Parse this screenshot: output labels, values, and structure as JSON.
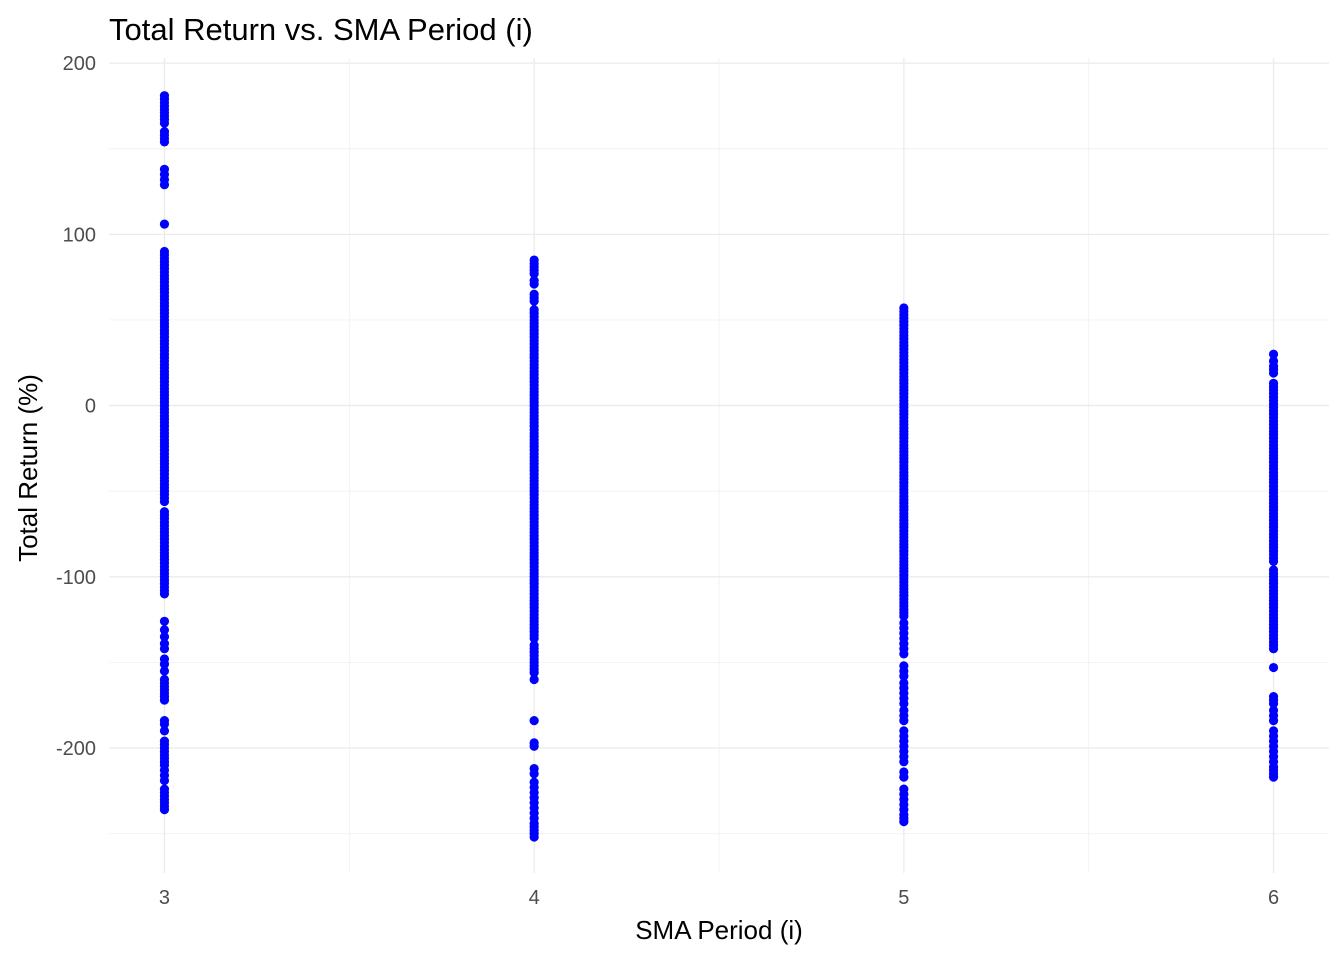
{
  "chart_data": {
    "type": "scatter",
    "title": "Total Return vs. SMA Period (i)",
    "xlabel": "SMA Period (i)",
    "ylabel": "Total Return (%)",
    "x_ticks": [
      3,
      4,
      5,
      6
    ],
    "x_tick_labels": [
      "3",
      "4",
      "5",
      "6"
    ],
    "y_ticks": [
      -200,
      -100,
      0,
      100,
      200
    ],
    "y_tick_labels": [
      "-200",
      "-100",
      "0",
      "100",
      "200"
    ],
    "xlim": [
      2.85,
      6.15
    ],
    "ylim": [
      -273,
      203
    ],
    "grid": true,
    "legend": "none",
    "marker_color": "#0000ff",
    "series": [
      {
        "x": 3,
        "y": [
          181,
          179,
          177,
          175,
          173,
          171,
          169,
          167,
          165,
          160,
          158,
          156,
          154,
          138,
          135,
          132,
          129,
          106,
          90,
          88,
          86,
          84,
          82,
          80,
          78,
          76,
          74,
          72,
          70,
          68,
          66,
          64,
          62,
          60,
          58,
          56,
          54,
          52,
          50,
          48,
          46,
          44,
          42,
          40,
          38,
          36,
          34,
          32,
          30,
          28,
          26,
          24,
          22,
          20,
          18,
          16,
          14,
          12,
          10,
          8,
          6,
          4,
          2,
          0,
          -2,
          -4,
          -6,
          -8,
          -10,
          -12,
          -14,
          -16,
          -18,
          -20,
          -22,
          -24,
          -26,
          -28,
          -30,
          -32,
          -34,
          -36,
          -38,
          -40,
          -42,
          -44,
          -46,
          -48,
          -50,
          -52,
          -54,
          -56,
          -62,
          -64,
          -66,
          -68,
          -70,
          -72,
          -74,
          -76,
          -78,
          -80,
          -82,
          -84,
          -86,
          -88,
          -90,
          -92,
          -94,
          -96,
          -98,
          -100,
          -102,
          -104,
          -106,
          -108,
          -110,
          -126,
          -131,
          -135,
          -139,
          -142,
          -148,
          -151,
          -155,
          -160,
          -162,
          -164,
          -166,
          -168,
          -170,
          -172,
          -184,
          -186,
          -190,
          -196,
          -198,
          -200,
          -202,
          -204,
          -206,
          -208,
          -210,
          -213,
          -216,
          -219,
          -224,
          -226,
          -228,
          -230,
          -232,
          -234,
          -236
        ]
      },
      {
        "x": 4,
        "y": [
          85,
          83,
          81,
          79,
          77,
          73,
          71,
          65,
          63,
          61,
          56,
          54,
          52,
          50,
          48,
          46,
          44,
          42,
          40,
          38,
          36,
          34,
          32,
          30,
          28,
          26,
          24,
          22,
          20,
          18,
          16,
          14,
          12,
          10,
          8,
          6,
          4,
          2,
          0,
          -2,
          -4,
          -6,
          -8,
          -10,
          -12,
          -14,
          -16,
          -18,
          -20,
          -22,
          -24,
          -26,
          -28,
          -30,
          -32,
          -34,
          -36,
          -38,
          -40,
          -42,
          -44,
          -46,
          -48,
          -50,
          -52,
          -54,
          -56,
          -58,
          -60,
          -62,
          -64,
          -66,
          -68,
          -70,
          -72,
          -74,
          -76,
          -78,
          -80,
          -82,
          -84,
          -86,
          -88,
          -90,
          -92,
          -94,
          -96,
          -98,
          -100,
          -102,
          -104,
          -106,
          -108,
          -110,
          -112,
          -114,
          -116,
          -118,
          -120,
          -122,
          -124,
          -126,
          -128,
          -130,
          -132,
          -134,
          -136,
          -140,
          -142,
          -144,
          -146,
          -148,
          -150,
          -152,
          -154,
          -156,
          -160,
          -184,
          -197,
          -199,
          -212,
          -215,
          -220,
          -223,
          -226,
          -229,
          -232,
          -235,
          -238,
          -241,
          -244,
          -246,
          -248,
          -250,
          -252
        ]
      },
      {
        "x": 5,
        "y": [
          57,
          55,
          53,
          51,
          49,
          47,
          45,
          43,
          41,
          39,
          37,
          35,
          33,
          31,
          29,
          27,
          25,
          23,
          21,
          19,
          17,
          15,
          13,
          11,
          9,
          7,
          5,
          3,
          1,
          -1,
          -3,
          -5,
          -7,
          -9,
          -11,
          -13,
          -15,
          -17,
          -19,
          -21,
          -23,
          -25,
          -27,
          -29,
          -31,
          -33,
          -35,
          -37,
          -39,
          -41,
          -43,
          -45,
          -47,
          -49,
          -51,
          -53,
          -55,
          -57,
          -59,
          -61,
          -63,
          -65,
          -67,
          -69,
          -71,
          -73,
          -75,
          -77,
          -79,
          -81,
          -83,
          -85,
          -87,
          -89,
          -91,
          -93,
          -95,
          -97,
          -99,
          -101,
          -103,
          -105,
          -107,
          -109,
          -111,
          -113,
          -115,
          -117,
          -119,
          -121,
          -123,
          -127,
          -130,
          -133,
          -136,
          -139,
          -142,
          -145,
          -152,
          -155,
          -158,
          -162,
          -165,
          -168,
          -171,
          -174,
          -178,
          -181,
          -184,
          -190,
          -193,
          -196,
          -199,
          -202,
          -205,
          -208,
          -214,
          -217,
          -224,
          -227,
          -230,
          -233,
          -236,
          -239,
          -241,
          -243
        ]
      },
      {
        "x": 6,
        "y": [
          30,
          26,
          23,
          21,
          19,
          13,
          11,
          9,
          7,
          5,
          3,
          1,
          -1,
          -3,
          -5,
          -7,
          -9,
          -11,
          -13,
          -15,
          -17,
          -19,
          -21,
          -23,
          -25,
          -27,
          -29,
          -31,
          -33,
          -35,
          -37,
          -39,
          -41,
          -43,
          -45,
          -47,
          -49,
          -51,
          -53,
          -55,
          -57,
          -59,
          -61,
          -63,
          -65,
          -67,
          -69,
          -71,
          -73,
          -75,
          -77,
          -79,
          -81,
          -83,
          -85,
          -87,
          -89,
          -91,
          -96,
          -98,
          -100,
          -102,
          -104,
          -106,
          -108,
          -110,
          -112,
          -114,
          -116,
          -118,
          -120,
          -122,
          -124,
          -126,
          -128,
          -130,
          -132,
          -134,
          -136,
          -138,
          -140,
          -142,
          -153,
          -170,
          -172,
          -174,
          -178,
          -181,
          -184,
          -190,
          -193,
          -196,
          -199,
          -202,
          -205,
          -208,
          -211,
          -213,
          -215,
          -217
        ]
      }
    ]
  }
}
